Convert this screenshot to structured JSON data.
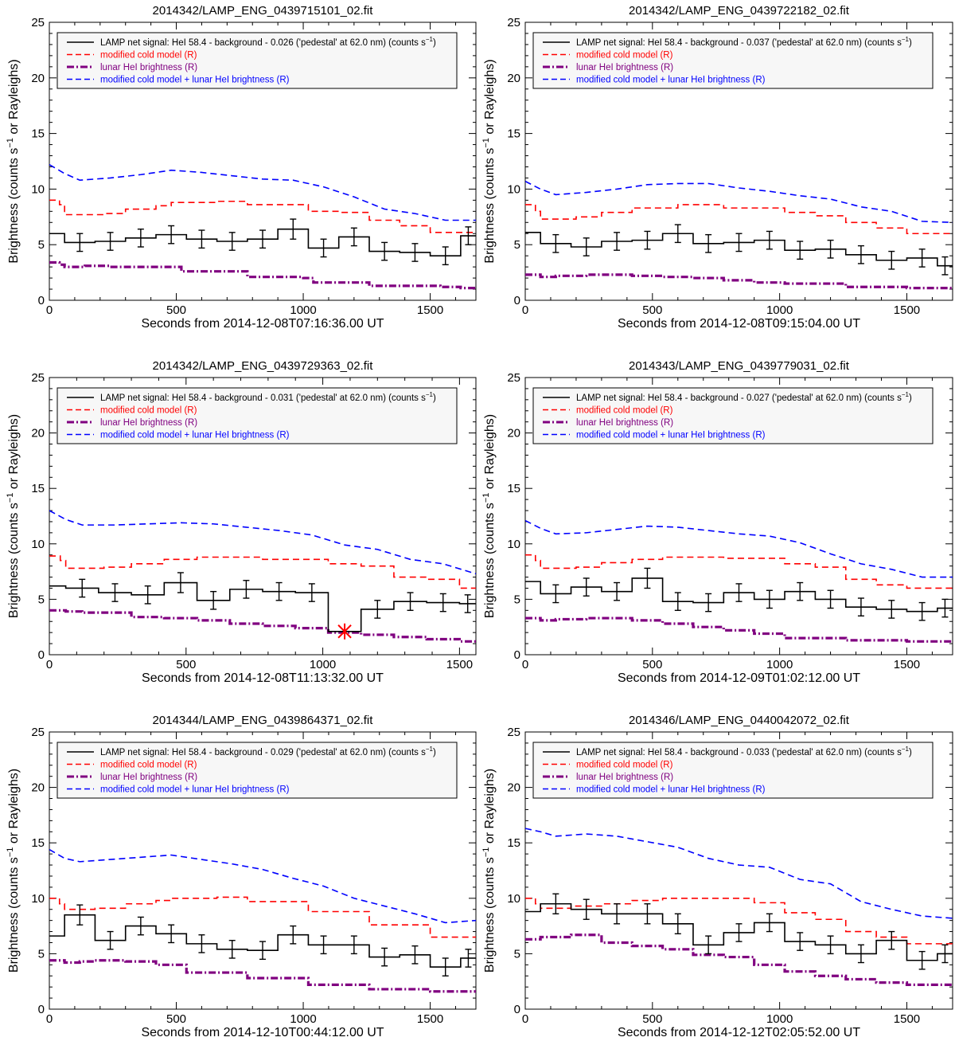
{
  "figure": {
    "ylabel_main": "Brightness (counts s",
    "ylabel_sup": "−1",
    "ylabel_tail": " or Rayleighs)",
    "legend": {
      "signal_prefix": "LAMP net signal: HeI 58.4 - background - ",
      "signal_suffix": " ('pedestal' at 62.0 nm) (counts s",
      "signal_sup": "−1",
      "signal_close": ")",
      "cold": "modified cold model (R)",
      "lunar": "lunar HeI brightness (R)",
      "sum": "modified cold model + lunar HeI brightness (R)"
    },
    "colors": {
      "signal": "#000000",
      "cold": "#ff0000",
      "lunar": "#800080",
      "sum": "#0000ff",
      "outlier": "#ff0000"
    },
    "yticks": [
      "0",
      "5",
      "10",
      "15",
      "20",
      "25"
    ]
  },
  "chart_data": [
    {
      "type": "line",
      "title": "2014342/LAMP_ENG_0439715101_02.fit",
      "xlabel": "Seconds from 2014-12-08T07:16:36.00 UT",
      "pedestal": "0.026",
      "xlim": [
        0,
        1680
      ],
      "ylim": [
        0,
        25
      ],
      "xticks": [
        "0",
        "500",
        "1000",
        "1500"
      ],
      "signal": {
        "edges": [
          0,
          60,
          180,
          300,
          420,
          540,
          660,
          780,
          900,
          1020,
          1140,
          1260,
          1380,
          1500,
          1620,
          1680
        ],
        "values": [
          6.0,
          5.2,
          5.3,
          5.6,
          5.9,
          5.5,
          5.3,
          5.5,
          6.4,
          4.7,
          5.7,
          4.4,
          4.3,
          4.0,
          5.8
        ],
        "errors": [
          0.8,
          0.8,
          0.8,
          0.8,
          0.8,
          0.8,
          0.8,
          0.8,
          0.9,
          0.8,
          0.8,
          0.8,
          0.8,
          0.8,
          0.8
        ]
      },
      "cold": {
        "edges": [
          0,
          40,
          60,
          220,
          300,
          420,
          480,
          660,
          780,
          1020,
          1140,
          1260,
          1380,
          1500,
          1680
        ],
        "values": [
          9.0,
          8.6,
          7.7,
          7.8,
          8.2,
          8.5,
          8.8,
          8.9,
          8.6,
          8.0,
          7.9,
          7.2,
          6.7,
          6.1
        ]
      },
      "lunar": {
        "edges": [
          0,
          40,
          60,
          140,
          240,
          260,
          520,
          780,
          1000,
          1040,
          1260,
          1540,
          1620,
          1680
        ],
        "values": [
          3.4,
          3.2,
          3.0,
          3.1,
          3.0,
          3.0,
          2.6,
          2.1,
          2.0,
          1.6,
          1.3,
          1.2,
          1.1
        ]
      },
      "sum": {
        "x": [
          0,
          60,
          120,
          240,
          360,
          480,
          600,
          720,
          840,
          960,
          1080,
          1200,
          1320,
          1440,
          1560,
          1680
        ],
        "y": [
          12.2,
          11.4,
          10.8,
          11.0,
          11.3,
          11.7,
          11.5,
          11.2,
          10.9,
          10.8,
          10.2,
          9.3,
          8.2,
          7.8,
          7.2,
          7.2
        ]
      }
    },
    {
      "type": "line",
      "title": "2014342/LAMP_ENG_0439722182_02.fit",
      "xlabel": "Seconds from 2014-12-08T09:15:04.00 UT",
      "pedestal": "0.037",
      "xlim": [
        0,
        1680
      ],
      "ylim": [
        0,
        25
      ],
      "xticks": [
        "0",
        "500",
        "1000",
        "1500"
      ],
      "signal": {
        "edges": [
          0,
          60,
          180,
          300,
          420,
          540,
          660,
          780,
          900,
          1020,
          1140,
          1260,
          1380,
          1500,
          1620,
          1680
        ],
        "values": [
          6.1,
          5.1,
          4.8,
          5.3,
          5.4,
          6.0,
          5.1,
          5.2,
          5.4,
          4.5,
          4.6,
          4.1,
          3.6,
          3.8,
          3.1
        ],
        "errors": [
          0.8,
          0.8,
          0.8,
          0.8,
          0.8,
          0.8,
          0.8,
          0.8,
          0.8,
          0.8,
          0.8,
          0.8,
          0.8,
          0.8,
          0.8
        ]
      },
      "cold": {
        "edges": [
          0,
          40,
          60,
          200,
          300,
          420,
          600,
          780,
          1020,
          1140,
          1260,
          1380,
          1500,
          1680
        ],
        "values": [
          8.6,
          8.0,
          7.3,
          7.5,
          7.9,
          8.3,
          8.6,
          8.3,
          7.9,
          7.6,
          7.0,
          6.5,
          6.0
        ]
      },
      "lunar": {
        "edges": [
          0,
          60,
          120,
          240,
          420,
          540,
          660,
          780,
          900,
          1020,
          1260,
          1500,
          1680
        ],
        "values": [
          2.3,
          2.1,
          2.2,
          2.3,
          2.2,
          2.1,
          2.0,
          1.8,
          1.6,
          1.5,
          1.2,
          1.1
        ]
      },
      "sum": {
        "x": [
          0,
          60,
          120,
          240,
          360,
          480,
          600,
          720,
          840,
          960,
          1080,
          1200,
          1320,
          1440,
          1560,
          1680
        ],
        "y": [
          10.7,
          10.0,
          9.5,
          9.7,
          10.0,
          10.4,
          10.5,
          10.5,
          10.1,
          9.8,
          9.4,
          9.1,
          8.4,
          8.0,
          7.1,
          7.0
        ]
      }
    },
    {
      "type": "line",
      "title": "2014342/LAMP_ENG_0439729363_02.fit",
      "xlabel": "Seconds from 2014-12-08T11:13:32.00 UT",
      "pedestal": "0.031",
      "xlim": [
        0,
        1560
      ],
      "ylim": [
        0,
        25
      ],
      "xticks": [
        "0",
        "500",
        "1000",
        "1500"
      ],
      "signal": {
        "edges": [
          0,
          60,
          180,
          300,
          420,
          540,
          660,
          780,
          900,
          1020,
          1140,
          1260,
          1380,
          1500,
          1560
        ],
        "values": [
          6.2,
          6.0,
          5.6,
          5.4,
          6.5,
          4.9,
          5.9,
          5.7,
          5.6,
          2.1,
          4.1,
          4.8,
          4.7,
          4.6
        ],
        "errors": [
          0.8,
          0.8,
          0.8,
          0.8,
          0.9,
          0.8,
          0.8,
          0.8,
          0.8,
          0.0,
          0.8,
          0.8,
          0.8,
          0.8
        ]
      },
      "outlier": {
        "x": 1080,
        "y": 2.1
      },
      "cold": {
        "edges": [
          0,
          40,
          60,
          200,
          300,
          420,
          540,
          780,
          1020,
          1140,
          1260,
          1380,
          1500,
          1560
        ],
        "values": [
          8.9,
          8.5,
          7.8,
          7.9,
          8.2,
          8.6,
          8.8,
          8.6,
          8.2,
          8.0,
          7.0,
          6.8,
          6.0
        ]
      },
      "lunar": {
        "edges": [
          0,
          60,
          120,
          300,
          420,
          540,
          660,
          780,
          900,
          1020,
          1140,
          1260,
          1380,
          1500,
          1560
        ],
        "values": [
          4.0,
          3.9,
          3.8,
          3.4,
          3.3,
          3.1,
          2.8,
          2.6,
          2.4,
          2.0,
          1.8,
          1.6,
          1.4,
          1.2
        ]
      },
      "sum": {
        "x": [
          0,
          60,
          120,
          240,
          360,
          480,
          600,
          720,
          840,
          960,
          1080,
          1200,
          1320,
          1440,
          1560
        ],
        "y": [
          13.0,
          12.2,
          11.7,
          11.7,
          11.8,
          11.9,
          11.8,
          11.5,
          11.2,
          10.8,
          9.9,
          9.5,
          8.6,
          8.2,
          7.3
        ]
      }
    },
    {
      "type": "line",
      "title": "2014343/LAMP_ENG_0439779031_02.fit",
      "xlabel": "Seconds from 2014-12-09T01:02:12.00 UT",
      "pedestal": "0.027",
      "xlim": [
        0,
        1680
      ],
      "ylim": [
        0,
        25
      ],
      "xticks": [
        "0",
        "500",
        "1000",
        "1500"
      ],
      "signal": {
        "edges": [
          0,
          60,
          180,
          300,
          420,
          540,
          660,
          780,
          900,
          1020,
          1140,
          1260,
          1380,
          1500,
          1620,
          1680
        ],
        "values": [
          6.6,
          5.5,
          6.1,
          5.7,
          6.9,
          4.8,
          4.7,
          5.6,
          5.0,
          5.7,
          5.0,
          4.3,
          4.1,
          3.9,
          4.2
        ],
        "errors": [
          0.8,
          0.8,
          0.8,
          0.8,
          0.9,
          0.8,
          0.8,
          0.8,
          0.8,
          0.8,
          0.8,
          0.8,
          0.8,
          0.8,
          0.8
        ]
      },
      "cold": {
        "edges": [
          0,
          40,
          60,
          200,
          300,
          420,
          540,
          780,
          1020,
          1140,
          1260,
          1380,
          1500,
          1680
        ],
        "values": [
          9.0,
          8.5,
          7.8,
          7.9,
          8.3,
          8.6,
          8.8,
          8.7,
          8.2,
          7.9,
          6.8,
          6.3,
          6.0
        ]
      },
      "lunar": {
        "edges": [
          0,
          60,
          120,
          240,
          420,
          540,
          660,
          780,
          900,
          1020,
          1260,
          1500,
          1680
        ],
        "values": [
          3.3,
          3.1,
          3.2,
          3.3,
          3.1,
          2.8,
          2.5,
          2.2,
          1.9,
          1.5,
          1.3,
          1.2
        ]
      },
      "sum": {
        "x": [
          0,
          60,
          120,
          240,
          360,
          480,
          600,
          720,
          840,
          960,
          1080,
          1200,
          1320,
          1440,
          1560,
          1680
        ],
        "y": [
          12.1,
          11.4,
          10.9,
          11.0,
          11.3,
          11.6,
          11.5,
          11.2,
          10.9,
          10.7,
          10.1,
          9.1,
          8.2,
          7.7,
          7.0,
          7.0
        ]
      }
    },
    {
      "type": "line",
      "title": "2014344/LAMP_ENG_0439864371_02.fit",
      "xlabel": "Seconds from 2014-12-10T00:44:12.00 UT",
      "pedestal": "0.029",
      "xlim": [
        0,
        1680
      ],
      "ylim": [
        0,
        25
      ],
      "xticks": [
        "0",
        "500",
        "1000",
        "1500"
      ],
      "signal": {
        "edges": [
          0,
          60,
          180,
          300,
          420,
          540,
          660,
          780,
          900,
          1020,
          1140,
          1260,
          1380,
          1500,
          1620,
          1680
        ],
        "values": [
          6.6,
          8.5,
          6.2,
          7.5,
          6.8,
          5.9,
          5.4,
          5.3,
          6.7,
          5.8,
          5.8,
          4.7,
          4.9,
          3.8,
          4.6
        ],
        "errors": [
          0.9,
          0.9,
          0.8,
          0.8,
          0.8,
          0.8,
          0.8,
          0.8,
          0.8,
          0.8,
          0.8,
          0.8,
          0.8,
          0.8,
          0.8
        ]
      },
      "cold": {
        "edges": [
          0,
          40,
          60,
          180,
          300,
          420,
          480,
          660,
          780,
          1020,
          1260,
          1500,
          1680
        ],
        "values": [
          10.0,
          9.5,
          9.0,
          9.1,
          9.5,
          9.8,
          10.0,
          10.1,
          9.7,
          8.8,
          7.6,
          6.5
        ]
      },
      "lunar": {
        "edges": [
          0,
          60,
          120,
          180,
          300,
          420,
          540,
          780,
          1020,
          1260,
          1500,
          1680
        ],
        "values": [
          4.4,
          4.2,
          4.3,
          4.4,
          4.3,
          4.0,
          3.3,
          2.8,
          2.2,
          1.8,
          1.6
        ]
      },
      "sum": {
        "x": [
          0,
          60,
          120,
          240,
          360,
          480,
          600,
          720,
          840,
          960,
          1080,
          1200,
          1320,
          1440,
          1560,
          1680
        ],
        "y": [
          14.4,
          13.6,
          13.3,
          13.5,
          13.7,
          13.9,
          13.5,
          13.1,
          12.6,
          11.8,
          11.1,
          10.0,
          9.3,
          8.6,
          7.8,
          8.0
        ]
      }
    },
    {
      "type": "line",
      "title": "2014346/LAMP_ENG_0440042072_02.fit",
      "xlabel": "Seconds from 2014-12-12T02:05:52.00 UT",
      "pedestal": "0.033",
      "xlim": [
        0,
        1680
      ],
      "ylim": [
        0,
        25
      ],
      "xticks": [
        "0",
        "500",
        "1000",
        "1500"
      ],
      "signal": {
        "edges": [
          0,
          60,
          180,
          300,
          420,
          540,
          660,
          780,
          900,
          1020,
          1140,
          1260,
          1380,
          1500,
          1620,
          1680
        ],
        "values": [
          8.8,
          9.5,
          9.0,
          8.6,
          8.6,
          7.7,
          5.8,
          6.9,
          7.8,
          6.1,
          5.8,
          5.0,
          6.2,
          4.4,
          5.0
        ],
        "errors": [
          0.9,
          0.9,
          0.9,
          0.9,
          0.9,
          0.9,
          0.8,
          0.8,
          0.8,
          0.8,
          0.8,
          0.8,
          0.8,
          0.8,
          0.8
        ]
      },
      "cold": {
        "edges": [
          0,
          40,
          60,
          180,
          300,
          420,
          540,
          660,
          780,
          900,
          1020,
          1140,
          1260,
          1380,
          1500,
          1680
        ],
        "values": [
          10.0,
          9.5,
          9.1,
          9.3,
          9.5,
          9.8,
          10.0,
          10.0,
          10.0,
          9.6,
          8.7,
          8.1,
          7.0,
          6.5,
          5.9
        ]
      },
      "lunar": {
        "edges": [
          0,
          60,
          180,
          300,
          420,
          540,
          660,
          780,
          900,
          1020,
          1140,
          1260,
          1380,
          1500,
          1680
        ],
        "values": [
          6.3,
          6.5,
          6.7,
          6.0,
          5.7,
          5.4,
          4.9,
          4.7,
          4.0,
          3.4,
          3.0,
          2.7,
          2.4,
          2.2
        ]
      },
      "sum": {
        "x": [
          0,
          60,
          120,
          240,
          360,
          480,
          600,
          720,
          840,
          960,
          1080,
          1200,
          1320,
          1440,
          1560,
          1680
        ],
        "y": [
          16.3,
          16.0,
          15.6,
          15.8,
          15.6,
          15.1,
          14.6,
          13.6,
          13.0,
          12.8,
          11.7,
          11.3,
          9.7,
          9.0,
          8.4,
          8.2
        ]
      }
    }
  ]
}
